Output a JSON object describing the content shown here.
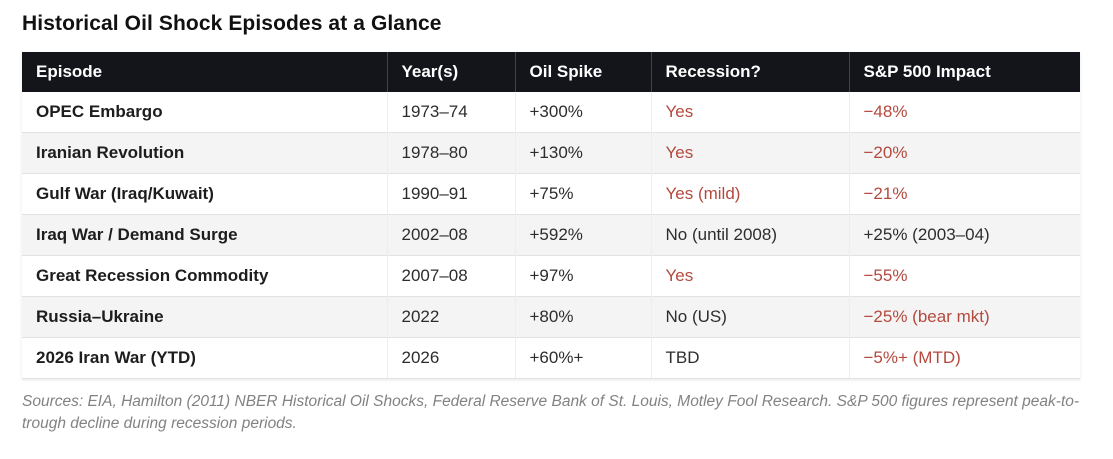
{
  "colors": {
    "accent_red": "#b4493e",
    "header_bg": "#13151b",
    "row_stripe": "#f4f4f4"
  },
  "chart_data": {
    "type": "table",
    "title": "Historical Oil Shock Episodes at a Glance",
    "columns": [
      "Episode",
      "Year(s)",
      "Oil Spike",
      "Recession?",
      "S&P 500 Impact"
    ],
    "rows": [
      {
        "cells": [
          "OPEC Embargo",
          "1973–74",
          "+300%",
          "Yes",
          "−48%"
        ],
        "styles": [
          "bold",
          "plain",
          "plain",
          "red",
          "red"
        ]
      },
      {
        "cells": [
          "Iranian Revolution",
          "1978–80",
          "+130%",
          "Yes",
          "−20%"
        ],
        "styles": [
          "bold",
          "plain",
          "plain",
          "red",
          "red"
        ]
      },
      {
        "cells": [
          "Gulf War (Iraq/Kuwait)",
          "1990–91",
          "+75%",
          "Yes (mild)",
          "−21%"
        ],
        "styles": [
          "bold",
          "plain",
          "plain",
          "red",
          "red"
        ]
      },
      {
        "cells": [
          "Iraq War / Demand Surge",
          "2002–08",
          "+592%",
          "No (until 2008)",
          "+25% (2003–04)"
        ],
        "styles": [
          "bold",
          "plain",
          "plain",
          "plain",
          "plain"
        ]
      },
      {
        "cells": [
          "Great Recession Commodity",
          "2007–08",
          "+97%",
          "Yes",
          "−55%"
        ],
        "styles": [
          "bold",
          "plain",
          "plain",
          "red",
          "red"
        ]
      },
      {
        "cells": [
          "Russia–Ukraine",
          "2022",
          "+80%",
          "No (US)",
          "−25% (bear mkt)"
        ],
        "styles": [
          "bold",
          "plain",
          "plain",
          "plain",
          "red"
        ]
      },
      {
        "cells": [
          "2026 Iran War (YTD)",
          "2026",
          "+60%+",
          "TBD",
          "−5%+ (MTD)"
        ],
        "styles": [
          "bold",
          "plain",
          "plain",
          "plain",
          "red"
        ]
      }
    ],
    "footnote": "Sources: EIA, Hamilton (2011) NBER Historical Oil Shocks, Federal Reserve Bank of St. Louis, Motley Fool Research. S&P 500 figures represent peak-to-trough decline during recession periods."
  }
}
